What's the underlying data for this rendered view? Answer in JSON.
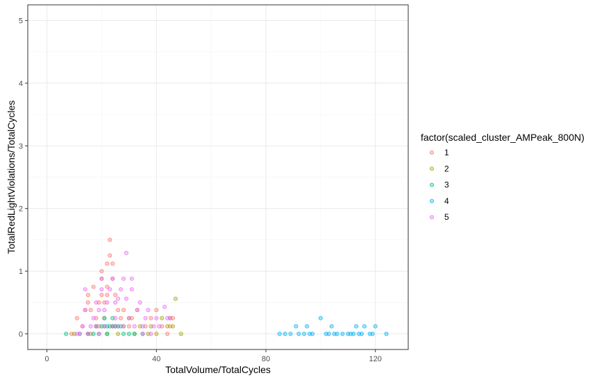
{
  "chart_data": {
    "type": "scatter",
    "title": "",
    "xlabel": "TotalVolume/TotalCycles",
    "ylabel": "TotalRedLightViolations/TotalCycles",
    "xlim": [
      -7,
      132
    ],
    "ylim": [
      -0.25,
      5.25
    ],
    "x_ticks": [
      0,
      40,
      80,
      120
    ],
    "y_ticks": [
      0,
      1,
      2,
      3,
      4,
      5
    ],
    "grid": true,
    "legend": {
      "title": "factor(scaled_cluster_AMPeak_800N)",
      "position": "right"
    },
    "series": [
      {
        "name": "1",
        "color": "#F8766D",
        "points": [
          [
            9,
            0
          ],
          [
            11,
            0.25
          ],
          [
            13,
            0.12
          ],
          [
            14,
            0.38
          ],
          [
            15,
            0.5
          ],
          [
            15,
            0.62
          ],
          [
            16,
            0
          ],
          [
            16,
            0.38
          ],
          [
            17,
            0.75
          ],
          [
            18,
            0.25
          ],
          [
            19,
            0.12
          ],
          [
            19,
            0.5
          ],
          [
            20,
            0.62
          ],
          [
            20,
            0.88
          ],
          [
            20,
            1.0
          ],
          [
            21,
            0.25
          ],
          [
            21,
            0.5
          ],
          [
            22,
            0.62
          ],
          [
            22,
            0.75
          ],
          [
            22,
            1.12
          ],
          [
            23,
            1.5
          ],
          [
            23,
            1.25
          ],
          [
            24,
            1.12
          ],
          [
            24,
            0.88
          ],
          [
            25,
            0.62
          ],
          [
            25,
            0.12
          ],
          [
            26,
            0.38
          ],
          [
            27,
            0.25
          ],
          [
            28,
            0.38
          ],
          [
            30,
            0.12
          ],
          [
            31,
            0.25
          ],
          [
            33,
            0.38
          ],
          [
            36,
            0.12
          ],
          [
            38,
            0.25
          ],
          [
            40,
            0.38
          ],
          [
            42,
            0.12
          ],
          [
            44,
            0
          ],
          [
            45,
            0.12
          ],
          [
            46,
            0.25
          ]
        ]
      },
      {
        "name": "2",
        "color": "#A3A500",
        "points": [
          [
            10,
            0
          ],
          [
            15,
            0
          ],
          [
            18,
            0.12
          ],
          [
            22,
            0
          ],
          [
            24,
            0.12
          ],
          [
            26,
            0
          ],
          [
            28,
            0.12
          ],
          [
            30,
            0.25
          ],
          [
            32,
            0
          ],
          [
            34,
            0.12
          ],
          [
            37,
            0
          ],
          [
            38,
            0.12
          ],
          [
            40,
            0
          ],
          [
            42,
            0.25
          ],
          [
            44,
            0.12
          ],
          [
            45,
            0.25
          ],
          [
            46,
            0.12
          ],
          [
            47,
            0.56
          ],
          [
            49,
            0
          ]
        ]
      },
      {
        "name": "3",
        "color": "#00BF7D",
        "points": [
          [
            7,
            0
          ],
          [
            12,
            0
          ],
          [
            15,
            0
          ],
          [
            17,
            0
          ],
          [
            18,
            0.12
          ],
          [
            19,
            0
          ],
          [
            20,
            0.12
          ],
          [
            21,
            0.12
          ],
          [
            21,
            0.25
          ],
          [
            22,
            0.12
          ],
          [
            22,
            0
          ],
          [
            23,
            0.12
          ],
          [
            24,
            0.12
          ],
          [
            24,
            0.25
          ],
          [
            25,
            0.12
          ],
          [
            26,
            0.12
          ],
          [
            27,
            0.12
          ],
          [
            28,
            0
          ],
          [
            30,
            0
          ],
          [
            32,
            0
          ],
          [
            35,
            0
          ]
        ]
      },
      {
        "name": "4",
        "color": "#00B0F6",
        "points": [
          [
            85,
            0
          ],
          [
            87,
            0
          ],
          [
            89,
            0
          ],
          [
            91,
            0.12
          ],
          [
            92,
            0
          ],
          [
            94,
            0
          ],
          [
            95,
            0.12
          ],
          [
            96,
            0
          ],
          [
            97,
            0
          ],
          [
            100,
            0.25
          ],
          [
            102,
            0
          ],
          [
            103,
            0
          ],
          [
            104,
            0.12
          ],
          [
            105,
            0
          ],
          [
            106,
            0
          ],
          [
            108,
            0
          ],
          [
            110,
            0
          ],
          [
            111,
            0
          ],
          [
            112,
            0
          ],
          [
            113,
            0.12
          ],
          [
            114,
            0
          ],
          [
            115,
            0
          ],
          [
            116,
            0.12
          ],
          [
            118,
            0
          ],
          [
            119,
            0
          ],
          [
            120,
            0.12
          ],
          [
            124,
            0
          ]
        ]
      },
      {
        "name": "5",
        "color": "#E76BF3",
        "points": [
          [
            11,
            0
          ],
          [
            12,
            0
          ],
          [
            13,
            0.12
          ],
          [
            14,
            0.38
          ],
          [
            14,
            0.71
          ],
          [
            15,
            0
          ],
          [
            16,
            0.12
          ],
          [
            17,
            0.25
          ],
          [
            18,
            0.5
          ],
          [
            18,
            0.12
          ],
          [
            19,
            0
          ],
          [
            19,
            0.38
          ],
          [
            20,
            0.71
          ],
          [
            20,
            0.88
          ],
          [
            21,
            0.12
          ],
          [
            21,
            0.38
          ],
          [
            22,
            0.5
          ],
          [
            23,
            0.71
          ],
          [
            24,
            0.12
          ],
          [
            24,
            0.88
          ],
          [
            25,
            0.25
          ],
          [
            25,
            0.5
          ],
          [
            26,
            0.12
          ],
          [
            26,
            0.56
          ],
          [
            27,
            0.71
          ],
          [
            28,
            0.12
          ],
          [
            28,
            0.88
          ],
          [
            29,
            1.29
          ],
          [
            29,
            0.56
          ],
          [
            30,
            0.25
          ],
          [
            31,
            0.71
          ],
          [
            31,
            0.88
          ],
          [
            32,
            0.12
          ],
          [
            33,
            0.38
          ],
          [
            34,
            0.5
          ],
          [
            35,
            0
          ],
          [
            35,
            0.12
          ],
          [
            36,
            0.25
          ],
          [
            37,
            0.38
          ],
          [
            38,
            0
          ],
          [
            39,
            0.12
          ],
          [
            40,
            0.25
          ],
          [
            41,
            0.12
          ],
          [
            43,
            0.43
          ],
          [
            44,
            0.25
          ],
          [
            45,
            0.25
          ]
        ]
      }
    ]
  }
}
